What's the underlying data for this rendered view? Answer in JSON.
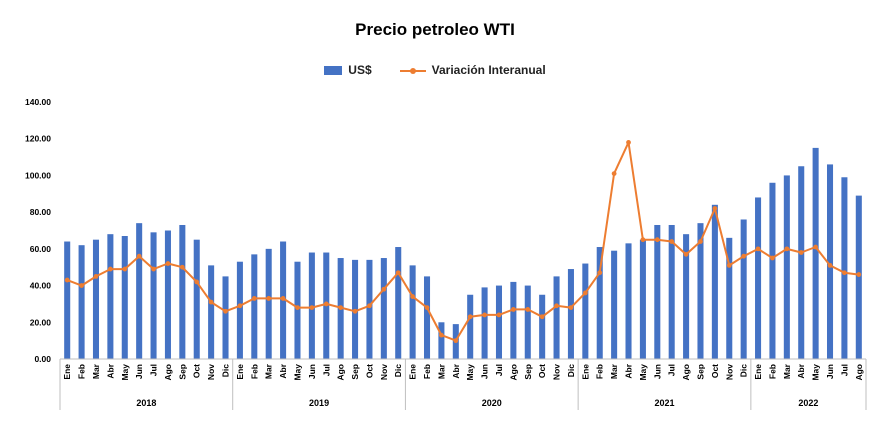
{
  "colors": {
    "bars": "#4472C4",
    "line": "#ED7D31",
    "axis": "#BFBFBF",
    "text": "#000000"
  },
  "chart_data": {
    "type": "bar",
    "title": "Precio petroleo WTI",
    "legend_position": "top",
    "grid": false,
    "ylim": [
      0,
      140
    ],
    "yticks": [
      "0.00",
      "20.00",
      "40.00",
      "60.00",
      "80.00",
      "100.00",
      "120.00",
      "140.00"
    ],
    "years": [
      "2018",
      "2019",
      "2020",
      "2021",
      "2022"
    ],
    "categories": [
      "Ene",
      "Feb",
      "Mar",
      "Abr",
      "May",
      "Jun",
      "Jul",
      "Ago",
      "Sep",
      "Oct",
      "Nov",
      "Dic",
      "Ene",
      "Feb",
      "Mar",
      "Abr",
      "May",
      "Jun",
      "Jul",
      "Ago",
      "Sep",
      "Oct",
      "Nov",
      "Dic",
      "Ene",
      "Feb",
      "Mar",
      "Abr",
      "May",
      "Jun",
      "Jul",
      "Ago",
      "Sep",
      "Oct",
      "Nov",
      "Dic",
      "Ene",
      "Feb",
      "Mar",
      "Abr",
      "May",
      "Jun",
      "Jul",
      "Ago",
      "Sep",
      "Oct",
      "Nov",
      "Dic",
      "Ene",
      "Feb",
      "Mar",
      "Abr",
      "May",
      "Jun",
      "Jul",
      "Ago"
    ],
    "series": [
      {
        "name": "US$",
        "type": "bar",
        "values": [
          64,
          62,
          65,
          68,
          67,
          74,
          69,
          70,
          73,
          65,
          51,
          45,
          53,
          57,
          60,
          64,
          53,
          58,
          58,
          55,
          54,
          54,
          55,
          61,
          51,
          45,
          20,
          19,
          35,
          39,
          40,
          42,
          40,
          35,
          45,
          49,
          52,
          61,
          59,
          63,
          65,
          73,
          73,
          68,
          74,
          84,
          66,
          76,
          88,
          96,
          100,
          105,
          115,
          106,
          99,
          89
        ]
      },
      {
        "name": "Variación Interanual",
        "type": "line",
        "values": [
          43,
          40,
          45,
          49,
          49,
          56,
          49,
          52,
          50,
          42,
          31,
          26,
          29,
          33,
          33,
          33,
          28,
          28,
          30,
          28,
          26,
          29,
          38,
          47,
          34,
          28,
          13,
          10,
          23,
          24,
          24,
          27,
          27,
          23,
          29,
          28,
          36,
          47,
          101,
          118,
          65,
          65,
          64,
          57,
          64,
          82,
          51,
          56,
          60,
          55,
          60,
          58,
          61,
          51,
          47,
          46
        ]
      }
    ]
  }
}
